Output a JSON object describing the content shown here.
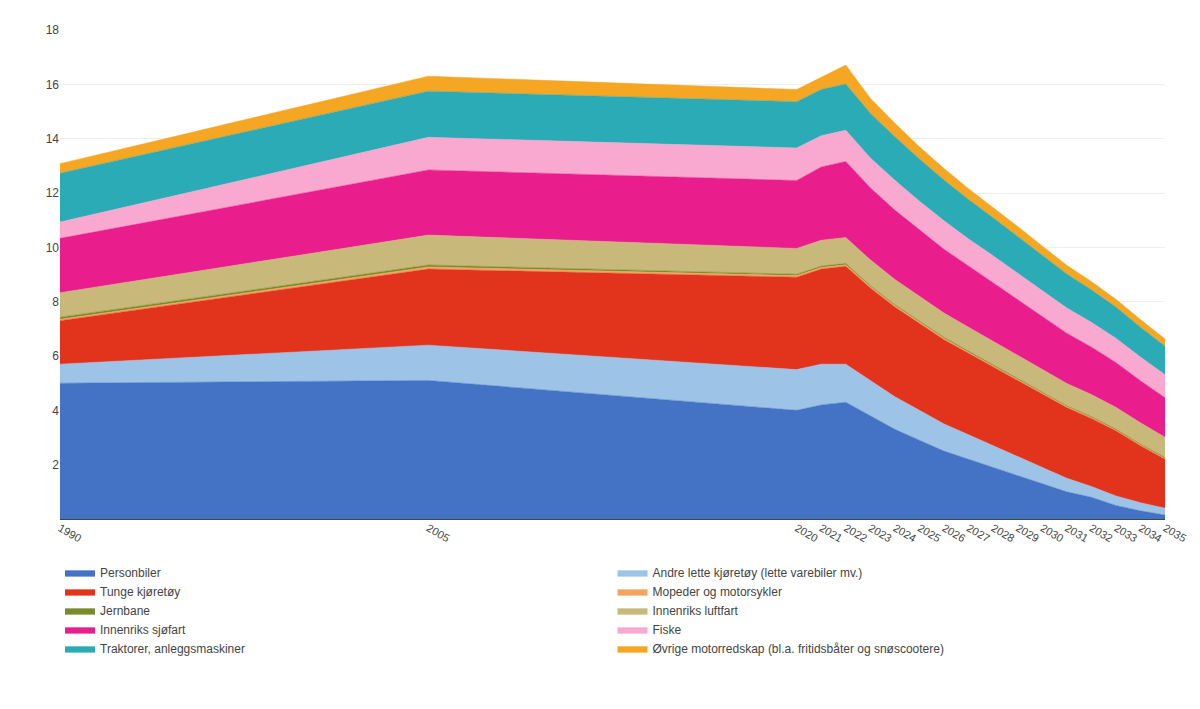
{
  "chart_data": {
    "type": "area",
    "stacked": true,
    "x": [
      1990,
      2005,
      2020,
      2021,
      2022,
      2023,
      2024,
      2025,
      2026,
      2027,
      2028,
      2029,
      2030,
      2031,
      2032,
      2033,
      2034,
      2035
    ],
    "series": [
      {
        "name": "Personbiler",
        "color": "#4472C4",
        "values": [
          5.0,
          5.1,
          4.0,
          4.2,
          4.3,
          3.8,
          3.3,
          2.9,
          2.5,
          2.2,
          1.9,
          1.6,
          1.3,
          1.0,
          0.8,
          0.5,
          0.3,
          0.15
        ]
      },
      {
        "name": "Andre lette kjøretøy (lette varebiler mv.)",
        "color": "#9DC3E6",
        "values": [
          0.7,
          1.3,
          1.5,
          1.5,
          1.4,
          1.3,
          1.2,
          1.1,
          1.0,
          0.9,
          0.8,
          0.7,
          0.6,
          0.5,
          0.4,
          0.35,
          0.3,
          0.25
        ]
      },
      {
        "name": "Tunge kjøretøy",
        "color": "#E2341D",
        "values": [
          1.6,
          2.8,
          3.4,
          3.5,
          3.6,
          3.4,
          3.3,
          3.2,
          3.1,
          3.0,
          2.9,
          2.8,
          2.7,
          2.6,
          2.5,
          2.4,
          2.1,
          1.8
        ]
      },
      {
        "name": "Mopeder og motorsykler",
        "color": "#F4A460",
        "values": [
          0.05,
          0.08,
          0.06,
          0.06,
          0.06,
          0.05,
          0.05,
          0.05,
          0.05,
          0.04,
          0.04,
          0.04,
          0.04,
          0.04,
          0.04,
          0.03,
          0.03,
          0.03
        ]
      },
      {
        "name": "Jernbane",
        "color": "#7B8B2A",
        "values": [
          0.08,
          0.07,
          0.05,
          0.05,
          0.05,
          0.04,
          0.04,
          0.04,
          0.04,
          0.04,
          0.04,
          0.04,
          0.03,
          0.03,
          0.03,
          0.03,
          0.03,
          0.03
        ]
      },
      {
        "name": "Innenriks luftfart",
        "color": "#C8B87A",
        "values": [
          0.9,
          1.1,
          0.95,
          0.95,
          0.95,
          0.95,
          0.93,
          0.91,
          0.89,
          0.88,
          0.86,
          0.85,
          0.84,
          0.82,
          0.81,
          0.8,
          0.78,
          0.75
        ]
      },
      {
        "name": "Innenriks sjøfart",
        "color": "#E91E8C",
        "values": [
          2.0,
          2.4,
          2.5,
          2.7,
          2.8,
          2.65,
          2.55,
          2.45,
          2.35,
          2.25,
          2.15,
          2.05,
          1.95,
          1.85,
          1.75,
          1.65,
          1.55,
          1.45
        ]
      },
      {
        "name": "Fiske",
        "color": "#F9A8CF",
        "values": [
          0.6,
          1.2,
          1.2,
          1.15,
          1.15,
          1.1,
          1.1,
          1.05,
          1.05,
          1.0,
          1.0,
          0.98,
          0.95,
          0.93,
          0.91,
          0.89,
          0.87,
          0.85
        ]
      },
      {
        "name": "Traktorer, anleggsmaskiner",
        "color": "#2AABB5",
        "values": [
          1.8,
          1.7,
          1.7,
          1.7,
          1.7,
          1.65,
          1.6,
          1.55,
          1.5,
          1.45,
          1.4,
          1.35,
          1.3,
          1.25,
          1.2,
          1.15,
          1.1,
          1.05
        ]
      },
      {
        "name": "Øvrige motorredskap (bl.a. fritidsbåter og snøscootere)",
        "color": "#F5A623",
        "values": [
          0.35,
          0.55,
          0.45,
          0.45,
          0.7,
          0.55,
          0.5,
          0.45,
          0.42,
          0.4,
          0.38,
          0.36,
          0.34,
          0.32,
          0.3,
          0.29,
          0.28,
          0.27
        ]
      }
    ],
    "xlim": [
      1990,
      2035
    ],
    "xticks": [
      1990,
      2005,
      2020,
      2021,
      2022,
      2023,
      2024,
      2025,
      2026,
      2027,
      2028,
      2029,
      2030,
      2031,
      2032,
      2033,
      2034,
      2035
    ],
    "ylim": [
      0,
      18
    ],
    "yticks": [
      2,
      4,
      6,
      8,
      10,
      12,
      14,
      16,
      18
    ],
    "grid": true,
    "legend": "bottom"
  }
}
